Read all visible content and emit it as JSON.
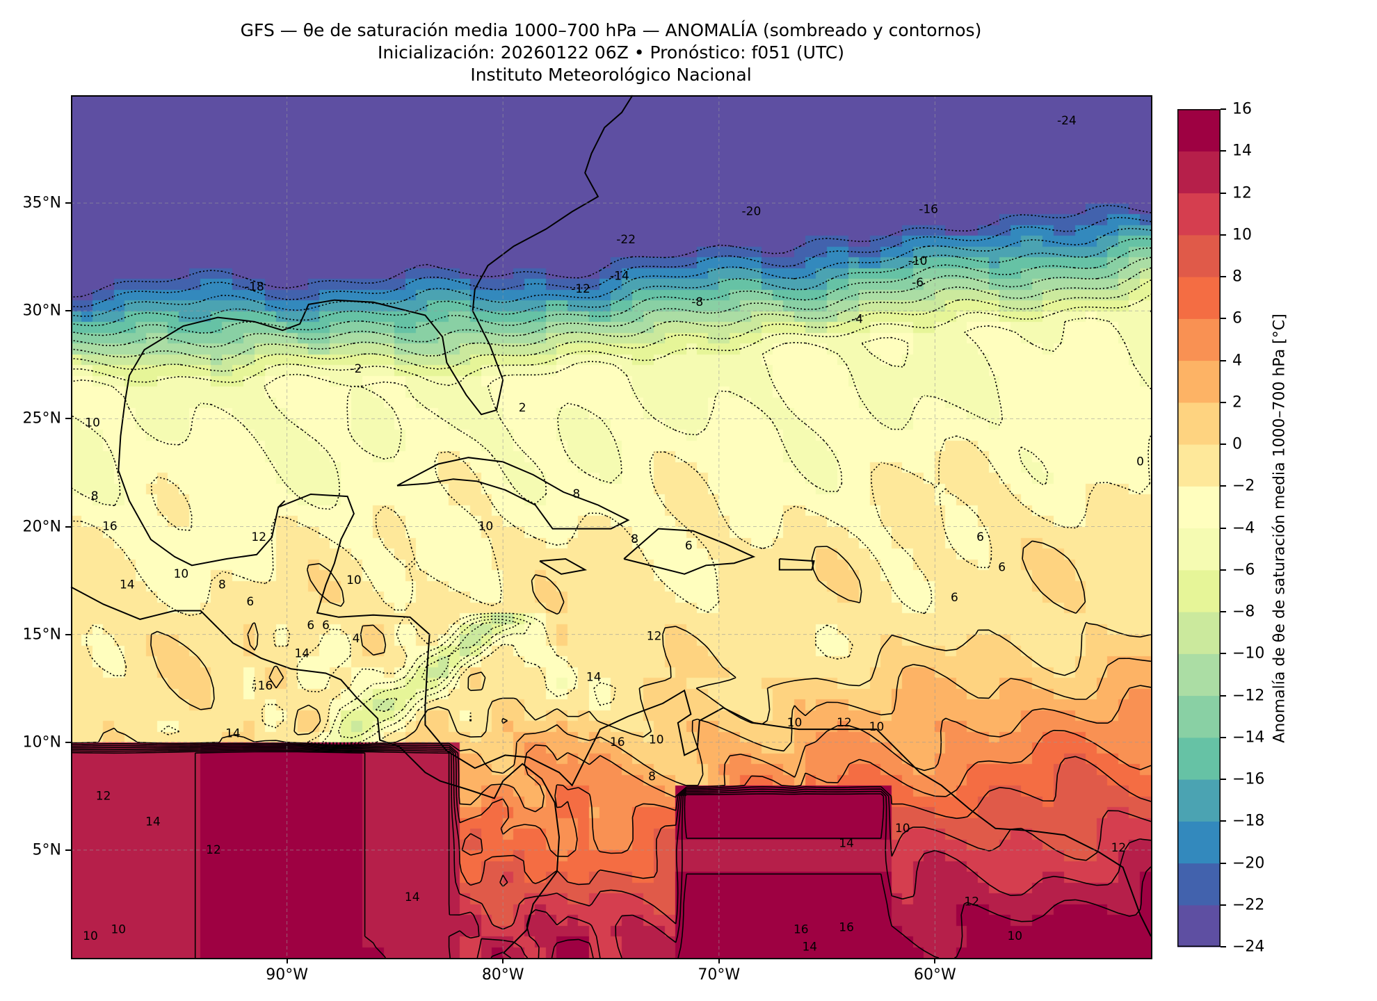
{
  "header": {
    "title": "GFS — θe de saturación media 1000–700 hPa — ANOMALÍA (sombreado y contornos)",
    "subtitle": "Inicialización: 20260122 06Z   •   Pronóstico: f051 (UTC)",
    "institution": "Instituto Meteorológico Nacional"
  },
  "map": {
    "projection": "PlateCarree",
    "lon_range": [
      -100,
      -50
    ],
    "lat_range": [
      0,
      40
    ],
    "lat_ticks": [
      {
        "value": 35,
        "label": "35°N"
      },
      {
        "value": 30,
        "label": "30°N"
      },
      {
        "value": 25,
        "label": "25°N"
      },
      {
        "value": 20,
        "label": "20°N"
      },
      {
        "value": 15,
        "label": "15°N"
      },
      {
        "value": 10,
        "label": "10°N"
      },
      {
        "value": 5,
        "label": "5°N"
      }
    ],
    "lon_ticks": [
      {
        "value": -90,
        "label": "90°W"
      },
      {
        "value": -80,
        "label": "80°W"
      },
      {
        "value": -70,
        "label": "70°W"
      },
      {
        "value": -60,
        "label": "60°W"
      }
    ],
    "gridlines": true,
    "contour_labels": [
      {
        "text": "-24",
        "lon": -53.9,
        "lat": 38.8
      },
      {
        "text": "-20",
        "lon": -68.5,
        "lat": 34.6
      },
      {
        "text": "-16",
        "lon": -60.3,
        "lat": 34.7
      },
      {
        "text": "-22",
        "lon": -74.3,
        "lat": 33.3
      },
      {
        "text": "-10",
        "lon": -60.8,
        "lat": 32.3
      },
      {
        "text": "-6",
        "lon": -60.8,
        "lat": 31.3
      },
      {
        "text": "-18",
        "lon": -91.5,
        "lat": 31.1
      },
      {
        "text": "-14",
        "lon": -74.6,
        "lat": 31.6
      },
      {
        "text": "-12",
        "lon": -76.4,
        "lat": 31.0
      },
      {
        "text": "-8",
        "lon": -71.0,
        "lat": 30.4
      },
      {
        "text": "-4",
        "lon": -63.6,
        "lat": 29.6
      },
      {
        "text": "-2",
        "lon": -86.8,
        "lat": 27.3
      },
      {
        "text": "2",
        "lon": -79.1,
        "lat": 25.5
      },
      {
        "text": "0",
        "lon": -50.5,
        "lat": 23.0
      },
      {
        "text": "10",
        "lon": -99.0,
        "lat": 24.8
      },
      {
        "text": "8",
        "lon": -98.9,
        "lat": 21.4
      },
      {
        "text": "8",
        "lon": -76.6,
        "lat": 21.5
      },
      {
        "text": "12",
        "lon": -91.3,
        "lat": 19.5
      },
      {
        "text": "16",
        "lon": -98.2,
        "lat": 20.0
      },
      {
        "text": "10",
        "lon": -94.9,
        "lat": 17.8
      },
      {
        "text": "8",
        "lon": -93.0,
        "lat": 17.3
      },
      {
        "text": "14",
        "lon": -97.4,
        "lat": 17.3
      },
      {
        "text": "10",
        "lon": -80.8,
        "lat": 20.0
      },
      {
        "text": "10",
        "lon": -86.9,
        "lat": 17.5
      },
      {
        "text": "6",
        "lon": -91.7,
        "lat": 16.5
      },
      {
        "text": "6",
        "lon": -88.9,
        "lat": 15.4
      },
      {
        "text": "6",
        "lon": -88.2,
        "lat": 15.4
      },
      {
        "text": "4",
        "lon": -86.8,
        "lat": 14.8
      },
      {
        "text": "8",
        "lon": -73.9,
        "lat": 19.4
      },
      {
        "text": "6",
        "lon": -71.4,
        "lat": 19.1
      },
      {
        "text": "6",
        "lon": -57.9,
        "lat": 19.5
      },
      {
        "text": "6",
        "lon": -56.9,
        "lat": 18.1
      },
      {
        "text": "6",
        "lon": -59.1,
        "lat": 16.7
      },
      {
        "text": "12",
        "lon": -73.0,
        "lat": 14.9
      },
      {
        "text": "14",
        "lon": -89.3,
        "lat": 14.1
      },
      {
        "text": "14",
        "lon": -75.8,
        "lat": 13.0
      },
      {
        "text": "16",
        "lon": -91.0,
        "lat": 12.6
      },
      {
        "text": "14",
        "lon": -92.5,
        "lat": 10.4
      },
      {
        "text": "16",
        "lon": -74.7,
        "lat": 10.0
      },
      {
        "text": "10",
        "lon": -72.9,
        "lat": 10.1
      },
      {
        "text": "10",
        "lon": -66.5,
        "lat": 10.9
      },
      {
        "text": "12",
        "lon": -64.2,
        "lat": 10.9
      },
      {
        "text": "10",
        "lon": -62.7,
        "lat": 10.7
      },
      {
        "text": "8",
        "lon": -73.1,
        "lat": 8.4
      },
      {
        "text": "12",
        "lon": -98.5,
        "lat": 7.5
      },
      {
        "text": "14",
        "lon": -96.2,
        "lat": 6.3
      },
      {
        "text": "12",
        "lon": -93.4,
        "lat": 5.0
      },
      {
        "text": "14",
        "lon": -64.1,
        "lat": 5.3
      },
      {
        "text": "10",
        "lon": -61.5,
        "lat": 6.0
      },
      {
        "text": "12",
        "lon": -51.5,
        "lat": 5.1
      },
      {
        "text": "14",
        "lon": -84.2,
        "lat": 2.8
      },
      {
        "text": "12",
        "lon": -58.3,
        "lat": 2.6
      },
      {
        "text": "10",
        "lon": -97.8,
        "lat": 1.3
      },
      {
        "text": "10",
        "lon": -99.1,
        "lat": 1.0
      },
      {
        "text": "16",
        "lon": -66.2,
        "lat": 1.3
      },
      {
        "text": "16",
        "lon": -64.1,
        "lat": 1.4
      },
      {
        "text": "10",
        "lon": -56.3,
        "lat": 1.0
      },
      {
        "text": "14",
        "lon": -65.8,
        "lat": 0.5
      }
    ]
  },
  "colorbar": {
    "label": "Anomalía de θe de saturación media 1000–700 hPa [°C]",
    "min": -24,
    "max": 16,
    "step": 2,
    "tick_labels": [
      "16",
      "14",
      "12",
      "10",
      "8",
      "6",
      "4",
      "2",
      "0",
      "−2",
      "−4",
      "−6",
      "−8",
      "−10",
      "−12",
      "−14",
      "−16",
      "−18",
      "−20",
      "−22",
      "−24"
    ],
    "colors": [
      "#5e4fa2",
      "#4262ad",
      "#3389bd",
      "#4ba3b2",
      "#66c2a5",
      "#89d0a4",
      "#abdda4",
      "#cbe99d",
      "#e6f598",
      "#f5fbb2",
      "#fffebe",
      "#fee89a",
      "#fed380",
      "#fdb365",
      "#f99153",
      "#f46d43",
      "#e05a49",
      "#d53e4f",
      "#b61f4a",
      "#9e0142"
    ]
  }
}
